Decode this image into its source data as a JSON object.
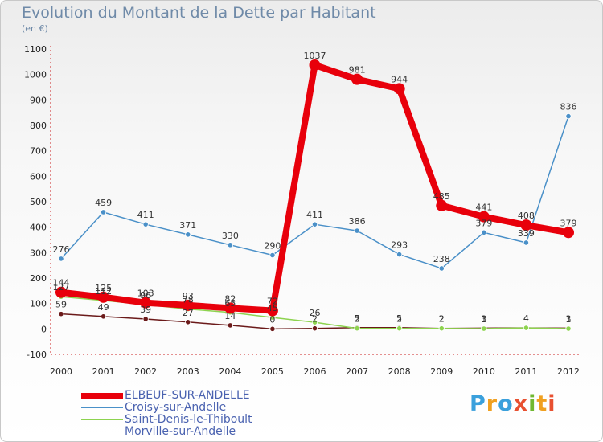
{
  "title": "Evolution du Montant de la Dette par Habitant",
  "subtitle": "(en €)",
  "logo_text": "Proxiti",
  "chart_data": {
    "type": "line",
    "title": "Evolution du Montant de la Dette par Habitant",
    "subtitle": "(en €)",
    "x": [
      "2000",
      "2001",
      "2002",
      "2003",
      "2004",
      "2005",
      "2006",
      "2007",
      "2008",
      "2009",
      "2010",
      "2011",
      "2012"
    ],
    "ylim": [
      -100,
      1100
    ],
    "yticks": [
      "-100",
      "0",
      "100",
      "200",
      "300",
      "400",
      "500",
      "600",
      "700",
      "800",
      "900",
      "1000",
      "1100"
    ],
    "grid": false,
    "legend_position": "bottom-left",
    "series": [
      {
        "name": "ELBEUF-SUR-ANDELLE",
        "color": "#e8000b",
        "values": [
          144,
          125,
          103,
          93,
          82,
          72,
          1037,
          981,
          944,
          485,
          441,
          408,
          379
        ]
      },
      {
        "name": "Croisy-sur-Andelle",
        "color": "#4a90c8",
        "values": [
          276,
          459,
          411,
          371,
          330,
          290,
          411,
          386,
          293,
          238,
          379,
          339,
          836
        ]
      },
      {
        "name": "Saint-Denis-le-Thiboult",
        "color": "#8dd34f",
        "values": [
          127,
          112,
          96,
          78,
          65,
          45,
          26,
          2,
          2,
          2,
          1,
          4,
          1
        ]
      },
      {
        "name": "Morville-sur-Andelle",
        "color": "#6b1a1a",
        "values": [
          59,
          49,
          39,
          27,
          14,
          0,
          2,
          5,
          5,
          2,
          3,
          4,
          3
        ]
      }
    ]
  }
}
